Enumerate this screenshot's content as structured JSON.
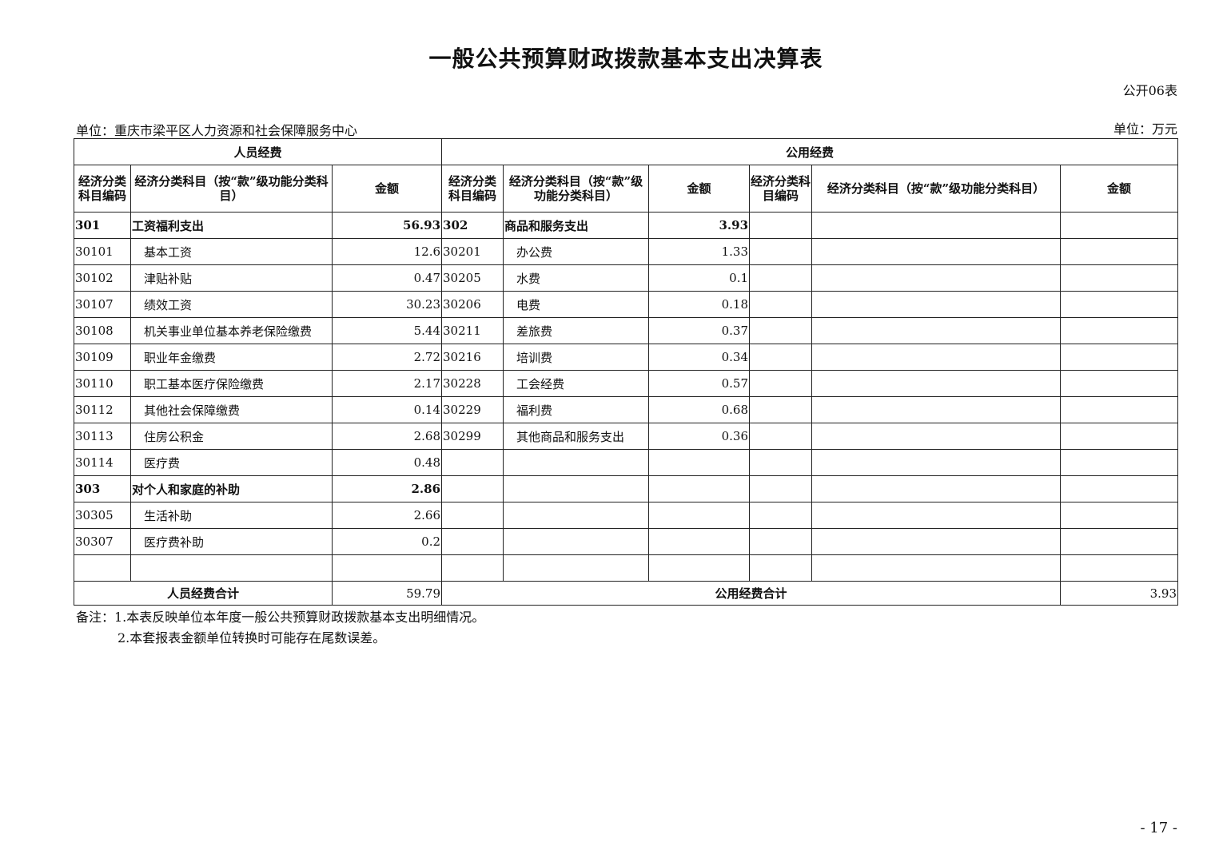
{
  "title": "一般公共预算财政拨款基本支出决算表",
  "form_no": "公开06表",
  "unit": "单位：重庆市梁平区人力资源和社会保障服务中心",
  "currency": "单位：万元",
  "table": {
    "group_headers": [
      "人员经费",
      "公用经费"
    ],
    "col_headers": [
      "经济分类科目编码",
      "经济分类科目（按“款”级功能分类科目）",
      "金额",
      "经济分类科目编码",
      "经济分类科目（按“款”级功能分类科目）",
      "金额",
      "经济分类科目编码",
      "经济分类科目（按“款”级功能分类科目）",
      "金额"
    ],
    "rows": [
      {
        "bold1": true,
        "bold2": true,
        "cells": [
          "301",
          "工资福利支出",
          "56.93",
          "302",
          "商品和服务支出",
          "3.93",
          "",
          "",
          ""
        ]
      },
      {
        "cells": [
          "30101",
          "基本工资",
          "12.6",
          "30201",
          "办公费",
          "1.33",
          "",
          "",
          ""
        ]
      },
      {
        "cells": [
          "30102",
          "津贴补贴",
          "0.47",
          "30205",
          "水费",
          "0.1",
          "",
          "",
          ""
        ]
      },
      {
        "cells": [
          "30107",
          "绩效工资",
          "30.23",
          "30206",
          "电费",
          "0.18",
          "",
          "",
          ""
        ]
      },
      {
        "cells": [
          "30108",
          "机关事业单位基本养老保险缴费",
          "5.44",
          "30211",
          "差旅费",
          "0.37",
          "",
          "",
          ""
        ]
      },
      {
        "cells": [
          "30109",
          "职业年金缴费",
          "2.72",
          "30216",
          "培训费",
          "0.34",
          "",
          "",
          ""
        ]
      },
      {
        "cells": [
          "30110",
          "职工基本医疗保险缴费",
          "2.17",
          "30228",
          "工会经费",
          "0.57",
          "",
          "",
          ""
        ]
      },
      {
        "cells": [
          "30112",
          "其他社会保障缴费",
          "0.14",
          "30229",
          "福利费",
          "0.68",
          "",
          "",
          ""
        ]
      },
      {
        "cells": [
          "30113",
          "住房公积金",
          "2.68",
          "30299",
          "其他商品和服务支出",
          "0.36",
          "",
          "",
          ""
        ]
      },
      {
        "cells": [
          "30114",
          "医疗费",
          "0.48",
          "",
          "",
          "",
          "",
          "",
          ""
        ]
      },
      {
        "bold1": true,
        "cells": [
          "303",
          "对个人和家庭的补助",
          "2.86",
          "",
          "",
          "",
          "",
          "",
          ""
        ]
      },
      {
        "cells": [
          "30305",
          "生活补助",
          "2.66",
          "",
          "",
          "",
          "",
          "",
          ""
        ]
      },
      {
        "cells": [
          "30307",
          "医疗费补助",
          "0.2",
          "",
          "",
          "",
          "",
          "",
          ""
        ]
      },
      {
        "cells": [
          "",
          "",
          "",
          "",
          "",
          "",
          "",
          "",
          ""
        ]
      }
    ],
    "totals": {
      "personnel_label": "人员经费合计",
      "personnel_value": "59.79",
      "public_label": "公用经费合计",
      "public_value": "3.93"
    }
  },
  "notes": [
    "备注：1.本表反映单位本年度一般公共预算财政拨款基本支出明细情况。",
    "2.本套报表金额单位转换时可能存在尾数误差。"
  ],
  "page_number": "- 17 -"
}
